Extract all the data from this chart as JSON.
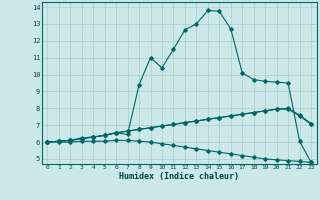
{
  "xlabel": "Humidex (Indice chaleur)",
  "bg_color": "#cce8e8",
  "grid_color": "#aacccc",
  "line_color": "#006666",
  "xlim": [
    -0.5,
    23.5
  ],
  "ylim": [
    4.7,
    14.3
  ],
  "xticks": [
    0,
    1,
    2,
    3,
    4,
    5,
    6,
    7,
    8,
    9,
    10,
    11,
    12,
    13,
    14,
    15,
    16,
    17,
    18,
    19,
    20,
    21,
    22,
    23
  ],
  "yticks": [
    5,
    6,
    7,
    8,
    9,
    10,
    11,
    12,
    13,
    14
  ],
  "line1_x": [
    0,
    1,
    2,
    3,
    4,
    5,
    6,
    7,
    8,
    9,
    10,
    11,
    12,
    13,
    14,
    15,
    16,
    17,
    18,
    19,
    20,
    21,
    22,
    23
  ],
  "line1_y": [
    6.0,
    6.05,
    6.1,
    6.25,
    6.3,
    6.4,
    6.55,
    6.45,
    9.4,
    11.0,
    10.4,
    11.5,
    12.65,
    13.0,
    13.8,
    13.75,
    12.7,
    10.1,
    9.7,
    9.6,
    9.55,
    9.5,
    6.05,
    4.8
  ],
  "line2_x": [
    0,
    1,
    2,
    3,
    4,
    5,
    6,
    7,
    8,
    9,
    10,
    11,
    12,
    13,
    14,
    15,
    16,
    17,
    18,
    19,
    20,
    21,
    22,
    23
  ],
  "line2_y": [
    6.0,
    6.05,
    6.1,
    6.2,
    6.3,
    6.4,
    6.55,
    6.65,
    6.75,
    6.85,
    6.95,
    7.05,
    7.15,
    7.25,
    7.35,
    7.45,
    7.55,
    7.65,
    7.75,
    7.85,
    7.95,
    8.0,
    7.6,
    7.1
  ],
  "line3_x": [
    0,
    1,
    2,
    3,
    4,
    5,
    6,
    7,
    8,
    9,
    10,
    11,
    12,
    13,
    14,
    15,
    16,
    17,
    18,
    19,
    20,
    21,
    22,
    23
  ],
  "line3_y": [
    6.0,
    6.05,
    6.1,
    6.2,
    6.3,
    6.4,
    6.55,
    6.65,
    6.75,
    6.85,
    6.95,
    7.05,
    7.15,
    7.25,
    7.35,
    7.45,
    7.55,
    7.65,
    7.75,
    7.85,
    7.95,
    7.95,
    7.55,
    7.05
  ],
  "line4_x": [
    0,
    1,
    2,
    3,
    4,
    5,
    6,
    7,
    8,
    9,
    10,
    11,
    12,
    13,
    14,
    15,
    16,
    17,
    18,
    19,
    20,
    21,
    22,
    23
  ],
  "line4_y": [
    6.0,
    6.0,
    6.0,
    6.05,
    6.05,
    6.05,
    6.1,
    6.1,
    6.05,
    6.0,
    5.9,
    5.8,
    5.7,
    5.6,
    5.5,
    5.4,
    5.3,
    5.2,
    5.1,
    5.0,
    4.95,
    4.9,
    4.85,
    4.8
  ]
}
